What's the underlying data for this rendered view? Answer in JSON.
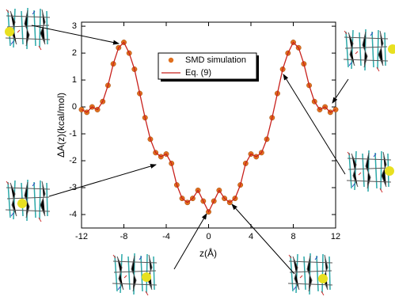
{
  "chart_data": {
    "type": "line",
    "x_label": "z(Å)",
    "y_label": "ΔA(z)(kcal/mol)",
    "x": [
      -12,
      -11.5,
      -11,
      -10.5,
      -10,
      -9.5,
      -9,
      -8.5,
      -8,
      -7.5,
      -7,
      -6.5,
      -6,
      -5.5,
      -5,
      -4.5,
      -4,
      -3.5,
      -3,
      -2.5,
      -2,
      -1.5,
      -1,
      -0.5,
      0,
      0.5,
      1,
      1.5,
      2,
      2.5,
      3,
      3.5,
      4,
      4.5,
      5,
      5.5,
      6,
      6.5,
      7,
      7.5,
      8,
      8.5,
      9,
      9.5,
      10,
      10.5,
      11,
      11.5,
      12
    ],
    "series": [
      {
        "name": "SMD simulation",
        "color": "#e0701e",
        "marker": "circle",
        "values": [
          -0.1,
          -0.2,
          0.0,
          -0.1,
          0.2,
          0.8,
          1.6,
          2.2,
          2.4,
          2.0,
          1.4,
          0.5,
          -0.4,
          -1.2,
          -1.7,
          -1.85,
          -1.75,
          -2.1,
          -2.9,
          -3.4,
          -3.55,
          -3.4,
          -3.1,
          -3.5,
          -3.9,
          -3.5,
          -3.1,
          -3.4,
          -3.55,
          -3.4,
          -2.9,
          -2.1,
          -1.75,
          -1.85,
          -1.7,
          -1.2,
          -0.4,
          0.5,
          1.4,
          2.0,
          2.4,
          2.2,
          1.6,
          0.8,
          0.2,
          -0.1,
          0.0,
          -0.2,
          -0.1
        ]
      },
      {
        "name": "Eq. (9)",
        "color": "#c8201c",
        "marker": "none",
        "values": [
          -0.1,
          -0.2,
          0.0,
          -0.1,
          0.2,
          0.8,
          1.6,
          2.2,
          2.4,
          2.0,
          1.4,
          0.5,
          -0.4,
          -1.2,
          -1.7,
          -1.85,
          -1.75,
          -2.1,
          -2.9,
          -3.4,
          -3.55,
          -3.4,
          -3.1,
          -3.5,
          -3.9,
          -3.5,
          -3.1,
          -3.4,
          -3.55,
          -3.4,
          -2.9,
          -2.1,
          -1.75,
          -1.85,
          -1.7,
          -1.2,
          -0.4,
          0.5,
          1.4,
          2.0,
          2.4,
          2.2,
          1.6,
          0.8,
          0.2,
          -0.1,
          0.0,
          -0.2,
          -0.1
        ]
      }
    ],
    "xlim": [
      -12,
      12
    ],
    "xticks": [
      -12,
      -8,
      -4,
      0,
      4,
      8,
      12
    ],
    "ylim": [
      -4.5,
      3.15
    ],
    "yticks": [
      -4,
      -3,
      -2,
      -1,
      0,
      1,
      2,
      3
    ],
    "grid": false
  }
}
